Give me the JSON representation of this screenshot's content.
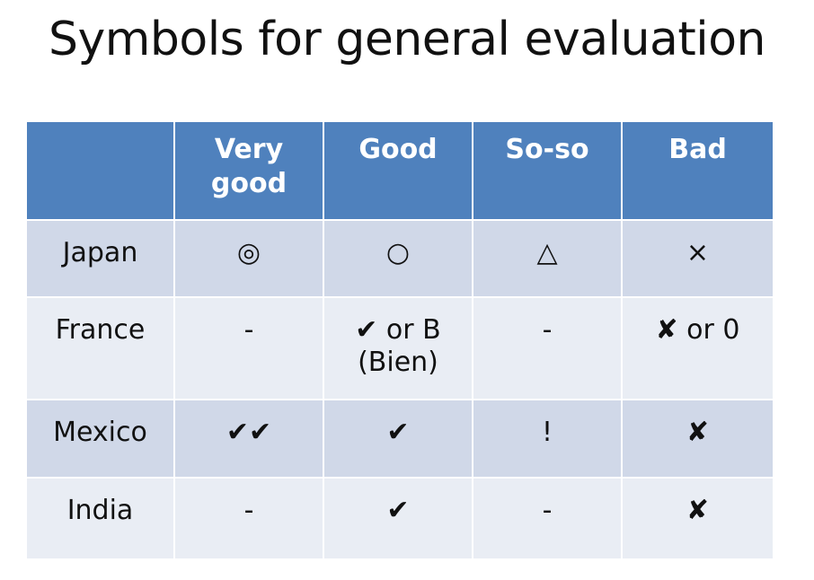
{
  "title": "Symbols for general evaluation",
  "table": {
    "headers": [
      "",
      "Very good",
      "Good",
      "So-so",
      "Bad"
    ],
    "rows": [
      {
        "country": "Japan",
        "very_good": "◎",
        "good": "○",
        "soso": "△",
        "bad": "×"
      },
      {
        "country": "France",
        "very_good": "-",
        "good_line1": "✔ or B",
        "good_line2": "(Bien)",
        "soso": "-",
        "bad": "✘ or 0"
      },
      {
        "country": "Mexico",
        "very_good": "✔✔",
        "good": "✔",
        "soso": "!",
        "bad": "✘"
      },
      {
        "country": "India",
        "very_good": "-",
        "good": "✔",
        "soso": "-",
        "bad": "✘"
      }
    ]
  },
  "colors": {
    "header_bg": "#4f81bd",
    "row_odd_bg": "#d0d8e8",
    "row_even_bg": "#e9edf4"
  }
}
